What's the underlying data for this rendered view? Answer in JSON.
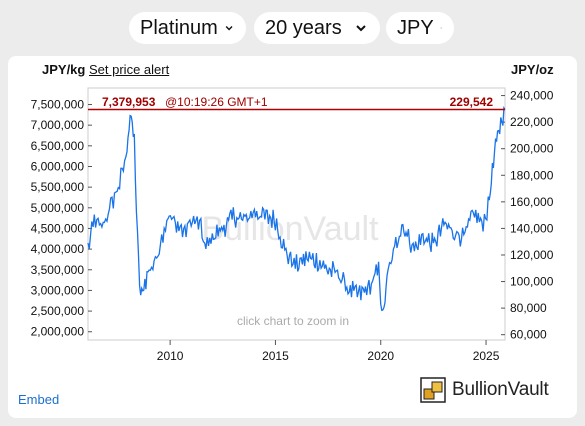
{
  "selectors": {
    "metal": "Platinum",
    "period": "20 years",
    "currency": "JPY"
  },
  "units": {
    "left": "JPY/kg",
    "right": "JPY/oz"
  },
  "alert_link": "Set price alert",
  "current": {
    "price_kg": "7,379,953",
    "time": "@10:19:26 GMT+1",
    "price_oz": "229,542"
  },
  "zoom_hint": "click chart to zoom in",
  "watermark": "BullionVault",
  "embed_label": "Embed",
  "logo_text": "BullionVault",
  "colors": {
    "line": "#1a73e8",
    "current_line": "#b00000",
    "background": "#ececec",
    "logo_gold": "#e0a020"
  },
  "chart_data": {
    "type": "line",
    "x_ticks": [
      "2010",
      "2015",
      "2020",
      "2025"
    ],
    "x_range": [
      2006.1,
      2025.9
    ],
    "y_left_ticks": [
      "2,000,000",
      "2,500,000",
      "3,000,000",
      "3,500,000",
      "4,000,000",
      "4,500,000",
      "5,000,000",
      "5,500,000",
      "6,000,000",
      "6,500,000",
      "7,000,000",
      "7,500,000"
    ],
    "y_left_range": [
      1800000,
      7900000
    ],
    "y_right_ticks": [
      "60,000",
      "80,000",
      "100,000",
      "120,000",
      "140,000",
      "160,000",
      "180,000",
      "200,000",
      "220,000",
      "240,000"
    ],
    "y_right_range": [
      56000,
      245700
    ],
    "current_value": 7379953,
    "series": [
      {
        "x": [
          2006.1,
          2006.4,
          2006.7,
          2007.0,
          2007.3,
          2007.6,
          2007.9,
          2008.1,
          2008.3,
          2008.45,
          2008.6,
          2008.8,
          2009.0,
          2009.3,
          2009.6,
          2009.9,
          2010.3,
          2010.7,
          2011.0,
          2011.4,
          2011.7,
          2012.0,
          2012.5,
          2013.0,
          2013.5,
          2014.0,
          2014.5,
          2015.0,
          2015.5,
          2016.0,
          2016.5,
          2017.0,
          2017.5,
          2018.0,
          2018.5,
          2019.0,
          2019.5,
          2019.9,
          2020.1,
          2020.3,
          2020.6,
          2021.0,
          2021.2,
          2021.6,
          2022.0,
          2022.5,
          2023.0,
          2023.5,
          2024.0,
          2024.4,
          2024.8,
          2025.1,
          2025.3,
          2025.5,
          2025.7,
          2025.9
        ],
        "y": [
          4000000,
          4700000,
          4500000,
          4800000,
          5200000,
          5600000,
          6200000,
          7300000,
          6600000,
          4200000,
          2800000,
          3200000,
          3500000,
          3700000,
          4300000,
          4800000,
          4600000,
          4400000,
          4700000,
          4600000,
          4000000,
          4300000,
          4500000,
          4800000,
          4700000,
          4900000,
          4800000,
          4700000,
          3900000,
          3600000,
          3800000,
          3700000,
          3500000,
          3400000,
          3000000,
          2900000,
          3100000,
          3500000,
          2300000,
          3300000,
          3900000,
          4600000,
          4400000,
          4000000,
          4300000,
          4100000,
          4600000,
          4400000,
          4300000,
          4900000,
          4600000,
          5000000,
          5900000,
          6600000,
          7100000,
          7379953
        ]
      }
    ]
  }
}
